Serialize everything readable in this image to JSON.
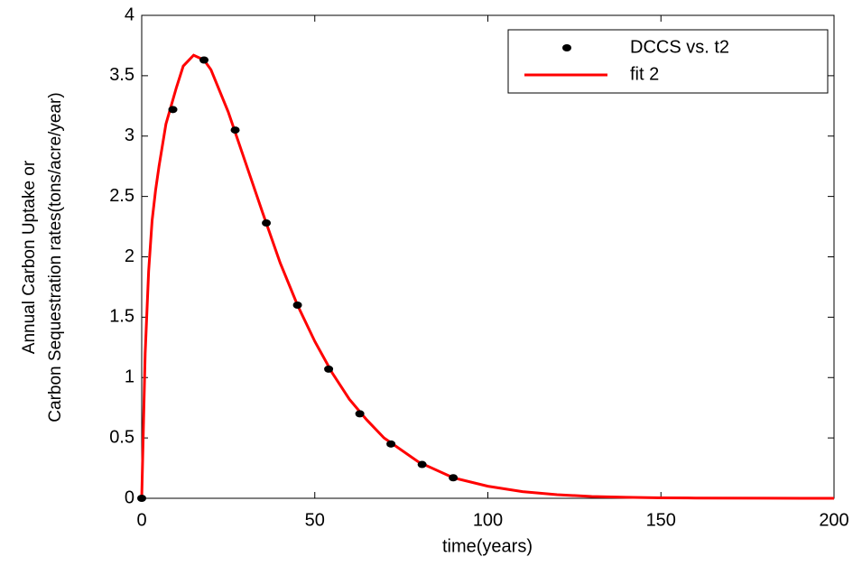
{
  "chart_data": {
    "type": "scatter",
    "xlabel": "time(years)",
    "ylabel": [
      "Annual Carbon Uptake or",
      "Carbon Sequestration rates(tons/acre/year)"
    ],
    "xlim": [
      0,
      200
    ],
    "ylim": [
      0,
      4
    ],
    "xticks": [
      0,
      50,
      100,
      150,
      200
    ],
    "yticks": [
      0,
      0.5,
      1,
      1.5,
      2,
      2.5,
      3,
      3.5,
      4
    ],
    "legend": "upper right",
    "series": [
      {
        "name": "DCCS vs. t2",
        "type": "scatter",
        "color": "#000000",
        "x": [
          0,
          9,
          18,
          27,
          36,
          45,
          54,
          63,
          72,
          81,
          90
        ],
        "values": [
          0,
          3.22,
          3.63,
          3.05,
          2.28,
          1.6,
          1.07,
          0.7,
          0.45,
          0.28,
          0.17
        ]
      },
      {
        "name": "fit 2",
        "type": "line",
        "color": "#ff0000",
        "x": [
          0,
          0.5,
          1,
          2,
          3,
          4,
          5,
          7,
          10,
          12,
          15,
          18,
          20,
          25,
          30,
          35,
          40,
          45,
          50,
          55,
          60,
          65,
          70,
          80,
          90,
          100,
          110,
          120,
          130,
          140,
          150,
          160,
          180,
          200
        ],
        "values": [
          0,
          0.6,
          1.2,
          1.88,
          2.3,
          2.55,
          2.75,
          3.1,
          3.4,
          3.58,
          3.67,
          3.63,
          3.55,
          3.2,
          2.78,
          2.36,
          1.95,
          1.6,
          1.3,
          1.04,
          0.82,
          0.65,
          0.5,
          0.3,
          0.17,
          0.1,
          0.055,
          0.03,
          0.015,
          0.008,
          0.004,
          0.002,
          0.0005,
          0.0001
        ]
      }
    ]
  }
}
